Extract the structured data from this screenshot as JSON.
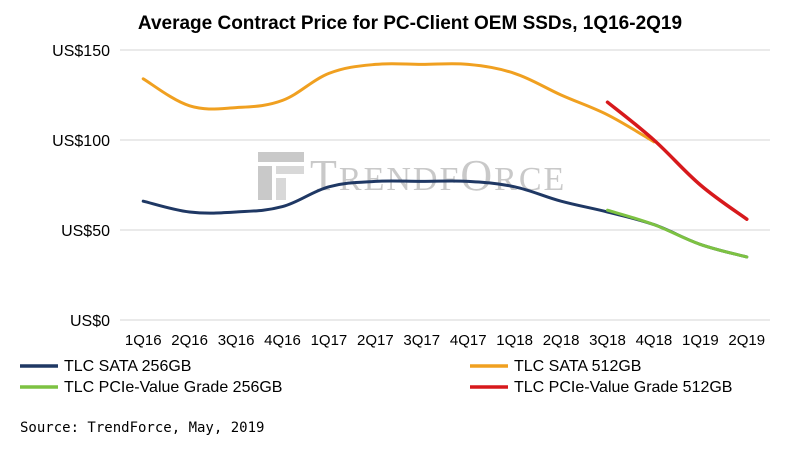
{
  "chart_data": {
    "type": "line",
    "title": "Average Contract Price for PC-Client OEM SSDs, 1Q16-2Q19",
    "xlabel": "",
    "ylabel": "",
    "categories": [
      "1Q16",
      "2Q16",
      "3Q16",
      "4Q16",
      "1Q17",
      "2Q17",
      "3Q17",
      "4Q17",
      "1Q18",
      "2Q18",
      "3Q18",
      "4Q18",
      "1Q19",
      "2Q19"
    ],
    "ylim": [
      0,
      150
    ],
    "yticks": [
      {
        "value": 0,
        "label": "US$0"
      },
      {
        "value": 50,
        "label": "US$50"
      },
      {
        "value": 100,
        "label": "US$100"
      },
      {
        "value": 150,
        "label": "US$150"
      }
    ],
    "grid": true,
    "series": [
      {
        "name": "TLC SATA 256GB",
        "color": "#1f3864",
        "values": [
          66,
          60,
          60,
          63,
          74,
          77,
          77,
          77,
          74,
          66,
          60,
          53,
          42,
          35
        ]
      },
      {
        "name": "TLC SATA 512GB",
        "color": "#f0a020",
        "values": [
          134,
          119,
          118,
          122,
          137,
          142,
          142,
          142,
          137,
          125,
          114,
          99,
          null,
          null
        ]
      },
      {
        "name": "TLC PCIe-Value Grade 256GB",
        "color": "#7dc242",
        "values": [
          null,
          null,
          null,
          null,
          null,
          null,
          null,
          null,
          null,
          null,
          61,
          53,
          42,
          35
        ]
      },
      {
        "name": "TLC PCIe-Value Grade 512GB",
        "color": "#d7191c",
        "values": [
          null,
          null,
          null,
          null,
          null,
          null,
          null,
          null,
          null,
          null,
          121,
          100,
          75,
          56
        ]
      }
    ],
    "legend_position": "bottom"
  },
  "watermark": {
    "text_big": "T",
    "text_rest": "RENDF",
    "text_big2": "O",
    "text_rest2": "RCE"
  },
  "source": "Source: TrendForce, May, 2019"
}
